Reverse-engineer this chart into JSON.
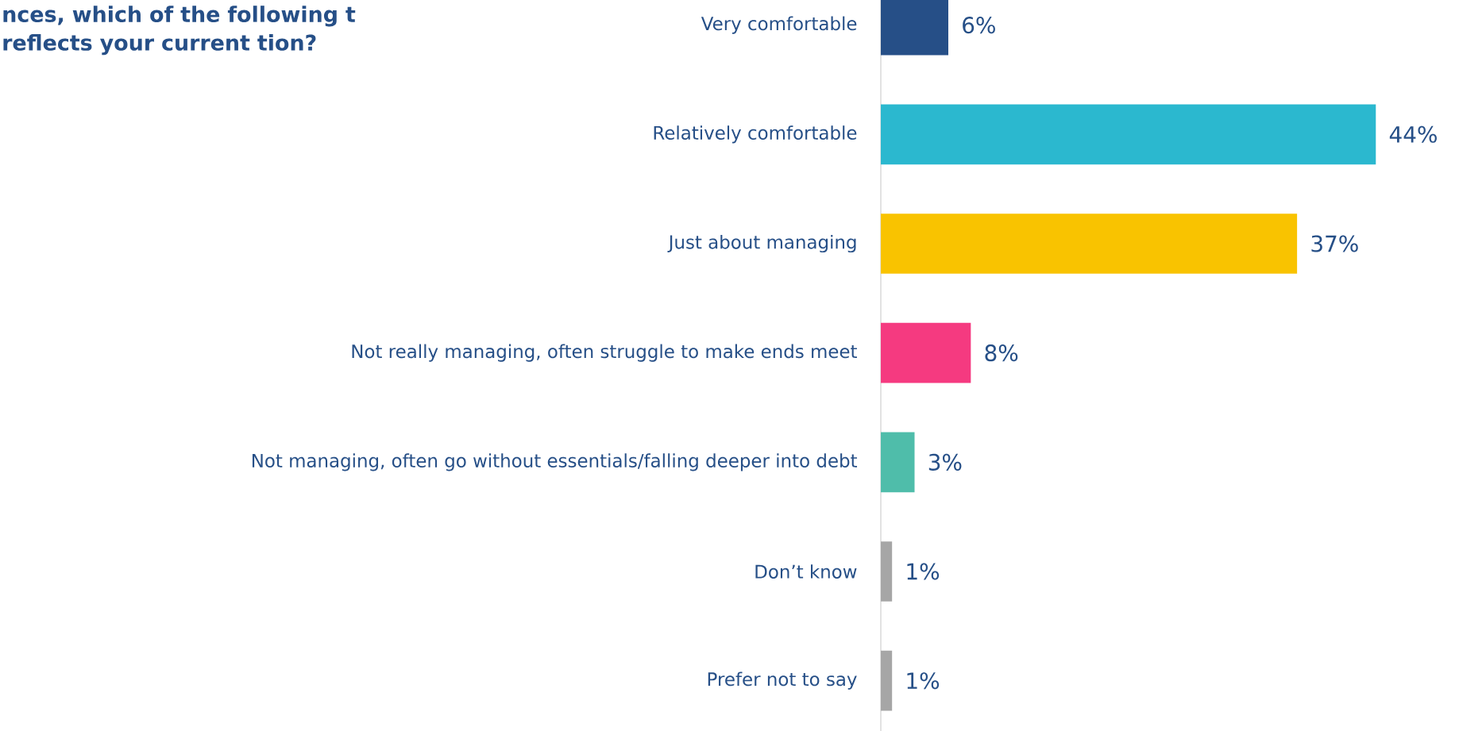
{
  "chart_data": {
    "type": "bar",
    "orientation": "horizontal",
    "title": "nces, which of the following t reflects your current tion?",
    "categories": [
      "Very comfortable",
      "Relatively comfortable",
      "Just about managing",
      "Not really managing, often struggle to make ends meet",
      "Not managing, often go without essentials/falling deeper into debt",
      "Don’t know",
      "Prefer not to say"
    ],
    "values": [
      6,
      44,
      37,
      8,
      3,
      1,
      1
    ],
    "value_labels": [
      "6%",
      "44%",
      "37%",
      "8%",
      "3%",
      "1%",
      "1%"
    ],
    "colors": [
      "#264f87",
      "#2bb8cf",
      "#f9c300",
      "#f53a80",
      "#4fbdaa",
      "#a6a6a6",
      "#a6a6a6"
    ],
    "tick_labels": "y"
  }
}
